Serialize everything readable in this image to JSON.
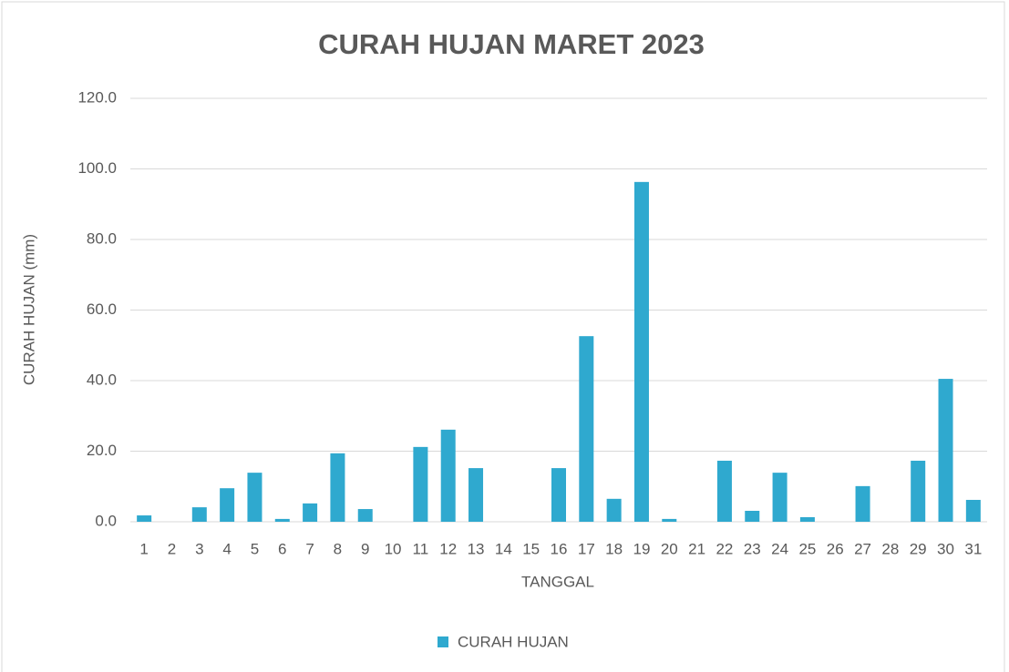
{
  "chart_data": {
    "type": "bar",
    "title": "CURAH HUJAN MARET 2023",
    "x_label": "TANGGAL",
    "y_label": "CURAH HUJAN (mm)",
    "categories": [
      "1",
      "2",
      "3",
      "4",
      "5",
      "6",
      "7",
      "8",
      "9",
      "10",
      "11",
      "12",
      "13",
      "14",
      "15",
      "16",
      "17",
      "18",
      "19",
      "20",
      "21",
      "22",
      "23",
      "24",
      "25",
      "26",
      "27",
      "28",
      "29",
      "30",
      "31"
    ],
    "series": [
      {
        "name": "CURAH HUJAN",
        "color": "#2fa9cf",
        "values": [
          1.8,
          0,
          4.1,
          9.5,
          13.9,
          0.8,
          5.2,
          19.4,
          3.6,
          0,
          21.2,
          26.1,
          15.2,
          0,
          0,
          15.2,
          52.6,
          6.5,
          96.3,
          0.8,
          0,
          17.3,
          3.1,
          13.9,
          1.3,
          0,
          10.1,
          0,
          17.3,
          40.5,
          6.2
        ]
      }
    ],
    "ylim": [
      0,
      120
    ],
    "yticks": [
      {
        "value": 0,
        "label": "0.0"
      },
      {
        "value": 20,
        "label": "20.0"
      },
      {
        "value": 40,
        "label": "40.0"
      },
      {
        "value": 60,
        "label": "60.0"
      },
      {
        "value": 80,
        "label": "80.0"
      },
      {
        "value": 100,
        "label": "100.0"
      },
      {
        "value": 120,
        "label": "120.0"
      }
    ],
    "grid": true,
    "legend": "bottom"
  }
}
